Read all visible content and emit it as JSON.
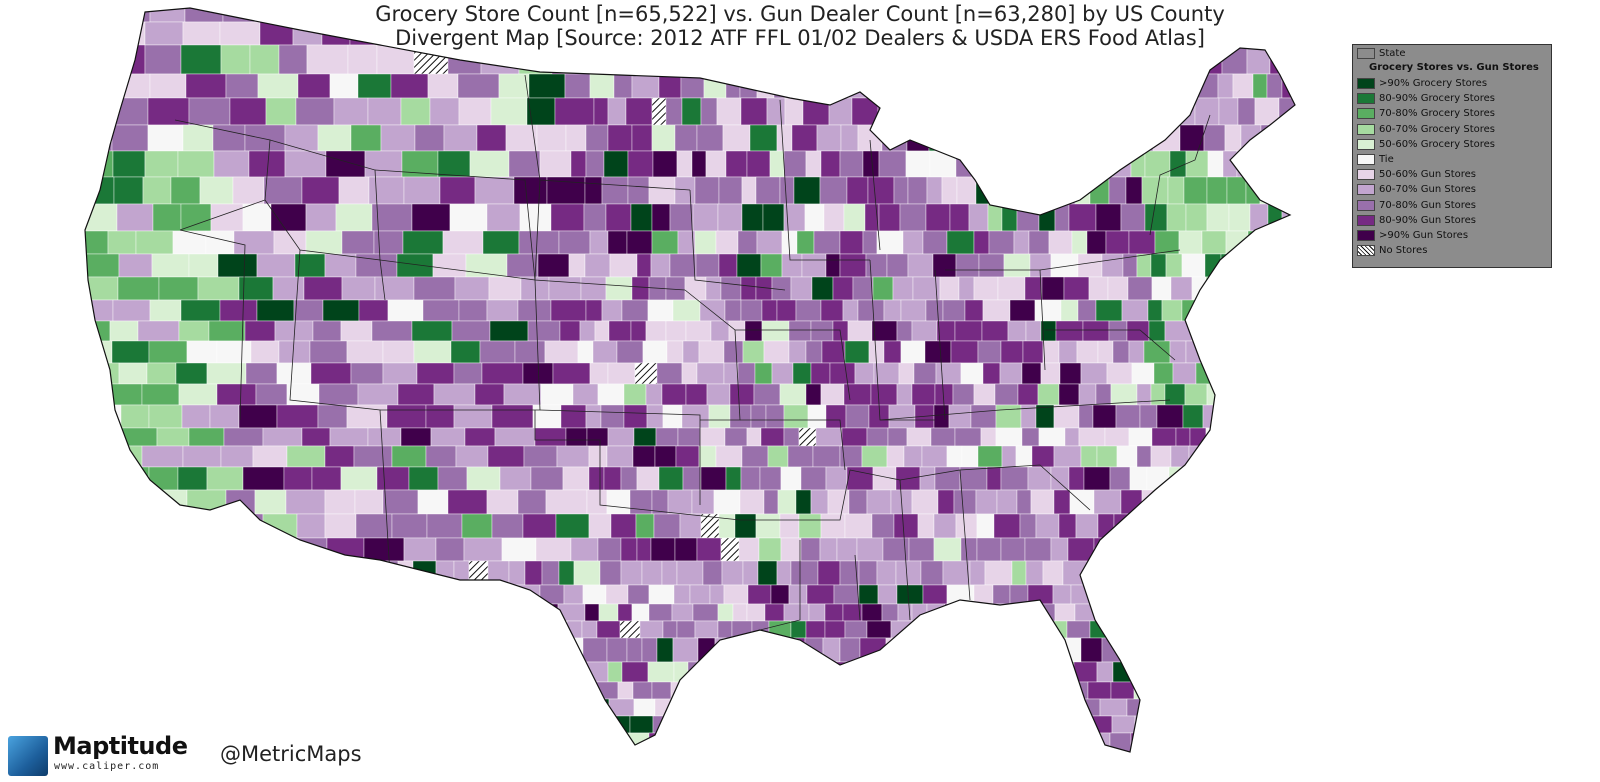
{
  "title": {
    "line1": "Grocery Store Count [n=65,522] vs. Gun Dealer Count [n=63,280] by US County",
    "line2": "Divergent Map [Source: 2012 ATF FFL 01/02 Dealers & USDA ERS Food Atlas]"
  },
  "legend": {
    "state_label": "State",
    "heading": "Grocery Stores vs. Gun Stores",
    "items": [
      {
        "label": ">90% Grocery Stores",
        "color": "#00441b"
      },
      {
        "label": "80-90% Grocery Stores",
        "color": "#1b7837"
      },
      {
        "label": "70-80% Grocery Stores",
        "color": "#5aae61"
      },
      {
        "label": "60-70% Grocery Stores",
        "color": "#a6dba0"
      },
      {
        "label": "50-60% Grocery Stores",
        "color": "#d9f0d3"
      },
      {
        "label": "Tie",
        "color": "#f7f7f7"
      },
      {
        "label": "50-60% Gun Stores",
        "color": "#e7d4e8"
      },
      {
        "label": "60-70% Gun Stores",
        "color": "#c2a5cf"
      },
      {
        "label": "70-80% Gun Stores",
        "color": "#9970ab"
      },
      {
        "label": "80-90% Gun Stores",
        "color": "#762a83"
      },
      {
        "label": ">90% Gun Stores",
        "color": "#40004b"
      },
      {
        "label": "No Stores",
        "color": "hatch"
      }
    ]
  },
  "branding": {
    "logo_name": "Maptitude",
    "logo_url": "www.caliper.com",
    "handle": "@MetricMaps"
  }
}
